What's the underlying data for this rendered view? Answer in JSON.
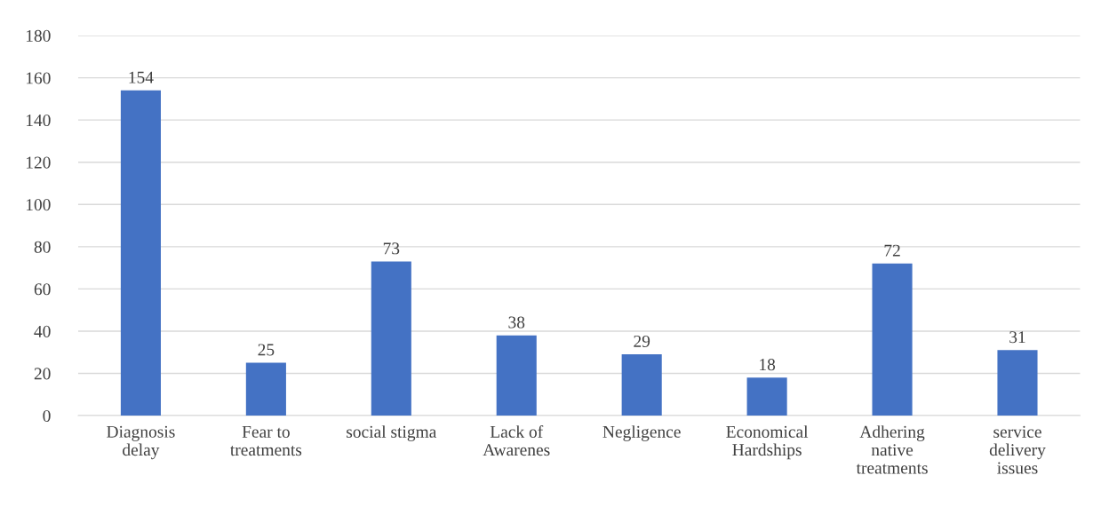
{
  "chart_data": {
    "type": "bar",
    "categories": [
      "Diagnosis\ndelay",
      "Fear to\ntreatments",
      "social stigma",
      "Lack of\nAwarenes",
      "Negligence",
      "Economical\nHardships",
      "Adhering\nnative\ntreatments",
      "service\ndelivery\nissues"
    ],
    "values": [
      154,
      25,
      73,
      38,
      29,
      18,
      72,
      31
    ],
    "color": "#4472c4",
    "ylim": [
      0,
      180
    ],
    "yticks": [
      0,
      20,
      40,
      60,
      80,
      100,
      120,
      140,
      160,
      180
    ],
    "grid": "y",
    "data_labels": true
  }
}
